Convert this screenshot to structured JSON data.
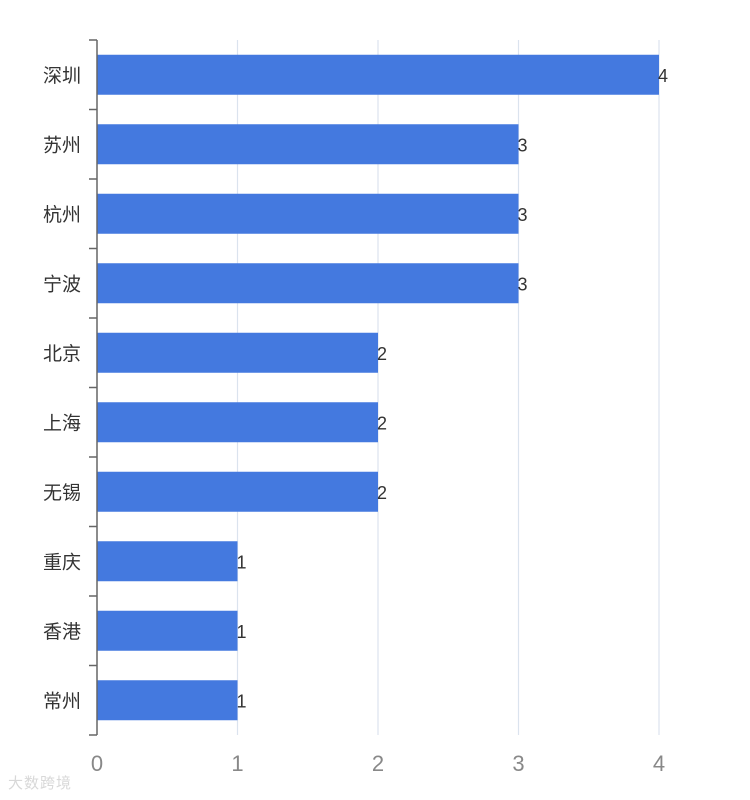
{
  "chart_data": {
    "type": "bar",
    "orientation": "horizontal",
    "categories": [
      "深圳",
      "苏州",
      "杭州",
      "宁波",
      "北京",
      "上海",
      "无锡",
      "重庆",
      "香港",
      "常州"
    ],
    "values": [
      4,
      3,
      3,
      3,
      2,
      2,
      2,
      1,
      1,
      1
    ],
    "xlim": [
      0,
      4
    ],
    "xticks": [
      0,
      1,
      2,
      3,
      4
    ],
    "grid": true,
    "show_value_labels": true,
    "bar_color": "#4479df"
  },
  "watermark": {
    "text": "大数跨境"
  }
}
